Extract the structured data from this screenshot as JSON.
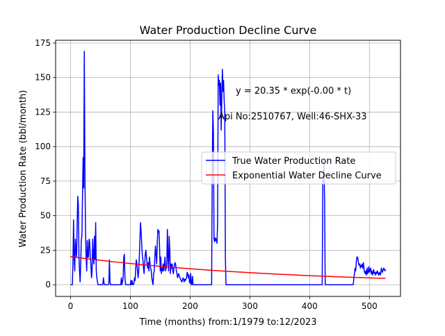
{
  "chart_data": {
    "type": "line",
    "title": "Water Production Decline Curve",
    "xlabel": "Time (months) from:1/1979 to:12/2023",
    "ylabel": "Water Production Rate (bbl/month)",
    "xlim": [
      -25,
      552
    ],
    "ylim": [
      -8.5,
      177
    ],
    "x_ticks": [
      0,
      100,
      200,
      300,
      400,
      500
    ],
    "y_ticks": [
      0,
      25,
      50,
      75,
      100,
      125,
      150,
      175
    ],
    "grid": true,
    "legend_position": "center-right",
    "annotations": [
      {
        "text": "y = 20.35 * exp(-0.00 * t)",
        "x": 275,
        "y": 139
      },
      {
        "text": "Api No:2510767, Well:46-SHX-33",
        "x": 245,
        "y": 121
      }
    ],
    "series": [
      {
        "name": "True Water Production Rate",
        "color": "#0000ff",
        "points": [
          [
            0,
            0
          ],
          [
            3,
            0
          ],
          [
            4,
            16
          ],
          [
            5,
            47
          ],
          [
            6,
            20
          ],
          [
            7,
            10
          ],
          [
            8,
            33
          ],
          [
            9,
            25
          ],
          [
            10,
            20
          ],
          [
            11,
            43
          ],
          [
            12,
            64
          ],
          [
            13,
            58
          ],
          [
            14,
            20
          ],
          [
            15,
            10
          ],
          [
            16,
            2
          ],
          [
            17,
            15
          ],
          [
            18,
            33
          ],
          [
            19,
            35
          ],
          [
            20,
            65
          ],
          [
            21,
            92
          ],
          [
            22,
            70
          ],
          [
            23,
            169
          ],
          [
            24,
            80
          ],
          [
            25,
            40
          ],
          [
            26,
            20
          ],
          [
            27,
            10
          ],
          [
            28,
            32
          ],
          [
            29,
            20
          ],
          [
            30,
            20
          ],
          [
            31,
            33
          ],
          [
            32,
            31
          ],
          [
            33,
            20
          ],
          [
            34,
            15
          ],
          [
            35,
            5
          ],
          [
            36,
            10
          ],
          [
            37,
            33
          ],
          [
            38,
            20
          ],
          [
            39,
            15
          ],
          [
            40,
            35
          ],
          [
            41,
            18
          ],
          [
            42,
            45
          ],
          [
            43,
            10
          ],
          [
            44,
            5
          ],
          [
            45,
            2
          ],
          [
            46,
            0
          ],
          [
            47,
            0
          ],
          [
            48,
            0
          ],
          [
            49,
            0
          ],
          [
            50,
            0
          ],
          [
            51,
            0
          ],
          [
            52,
            0
          ],
          [
            54,
            0
          ],
          [
            55,
            5
          ],
          [
            56,
            1
          ],
          [
            57,
            0
          ],
          [
            60,
            0
          ],
          [
            64,
            0
          ],
          [
            65,
            18
          ],
          [
            66,
            2
          ],
          [
            67,
            0
          ],
          [
            70,
            0
          ],
          [
            75,
            0
          ],
          [
            80,
            0
          ],
          [
            84,
            0
          ],
          [
            85,
            5
          ],
          [
            86,
            0
          ],
          [
            88,
            5
          ],
          [
            89,
            20
          ],
          [
            90,
            22
          ],
          [
            91,
            5
          ],
          [
            92,
            0
          ],
          [
            95,
            0
          ],
          [
            100,
            0
          ],
          [
            101,
            3
          ],
          [
            102,
            0
          ],
          [
            103,
            3
          ],
          [
            104,
            0
          ],
          [
            105,
            0
          ],
          [
            106,
            1
          ],
          [
            107,
            5
          ],
          [
            108,
            3
          ],
          [
            109,
            12
          ],
          [
            110,
            18
          ],
          [
            111,
            15
          ],
          [
            112,
            10
          ],
          [
            113,
            5
          ],
          [
            114,
            10
          ],
          [
            115,
            20
          ],
          [
            116,
            32
          ],
          [
            117,
            45
          ],
          [
            118,
            38
          ],
          [
            119,
            30
          ],
          [
            120,
            22
          ],
          [
            121,
            18
          ],
          [
            122,
            12
          ],
          [
            123,
            8
          ],
          [
            124,
            15
          ],
          [
            125,
            22
          ],
          [
            126,
            25
          ],
          [
            127,
            20
          ],
          [
            128,
            15
          ],
          [
            129,
            12
          ],
          [
            130,
            16
          ],
          [
            131,
            10
          ],
          [
            132,
            20
          ],
          [
            133,
            15
          ],
          [
            134,
            12
          ],
          [
            135,
            10
          ],
          [
            136,
            5
          ],
          [
            137,
            2
          ],
          [
            138,
            0
          ],
          [
            139,
            8
          ],
          [
            140,
            10
          ],
          [
            141,
            20
          ],
          [
            142,
            28
          ],
          [
            143,
            22
          ],
          [
            144,
            15
          ],
          [
            145,
            30
          ],
          [
            146,
            40
          ],
          [
            147,
            38
          ],
          [
            148,
            39
          ],
          [
            149,
            25
          ],
          [
            150,
            10
          ],
          [
            151,
            20
          ],
          [
            152,
            8
          ],
          [
            153,
            12
          ],
          [
            154,
            10
          ],
          [
            155,
            15
          ],
          [
            156,
            10
          ],
          [
            157,
            15
          ],
          [
            158,
            20
          ],
          [
            159,
            10
          ],
          [
            160,
            12
          ],
          [
            161,
            15
          ],
          [
            162,
            40
          ],
          [
            163,
            20
          ],
          [
            164,
            10
          ],
          [
            165,
            35
          ],
          [
            166,
            25
          ],
          [
            167,
            8
          ],
          [
            168,
            15
          ],
          [
            169,
            12
          ],
          [
            170,
            15
          ],
          [
            171,
            10
          ],
          [
            172,
            8
          ],
          [
            173,
            12
          ],
          [
            174,
            15
          ],
          [
            175,
            16
          ],
          [
            176,
            14
          ],
          [
            177,
            10
          ],
          [
            178,
            8
          ],
          [
            179,
            5
          ],
          [
            180,
            7
          ],
          [
            181,
            8
          ],
          [
            182,
            6
          ],
          [
            183,
            5
          ],
          [
            184,
            4
          ],
          [
            185,
            3
          ],
          [
            186,
            2
          ],
          [
            187,
            3
          ],
          [
            188,
            5
          ],
          [
            189,
            4
          ],
          [
            190,
            2
          ],
          [
            191,
            4
          ],
          [
            192,
            3
          ],
          [
            193,
            4
          ],
          [
            194,
            5
          ],
          [
            195,
            9
          ],
          [
            196,
            8
          ],
          [
            197,
            5
          ],
          [
            198,
            7
          ],
          [
            199,
            2
          ],
          [
            200,
            1
          ],
          [
            201,
            8
          ],
          [
            202,
            0
          ],
          [
            203,
            0
          ],
          [
            204,
            6
          ],
          [
            205,
            0
          ],
          [
            206,
            0
          ],
          [
            210,
            0
          ],
          [
            215,
            0
          ],
          [
            220,
            0
          ],
          [
            225,
            0
          ],
          [
            230,
            0
          ],
          [
            235,
            0
          ],
          [
            236,
            0
          ],
          [
            237,
            80
          ],
          [
            238,
            126
          ],
          [
            239,
            110
          ],
          [
            240,
            33
          ],
          [
            241,
            31
          ],
          [
            242,
            34
          ],
          [
            243,
            32
          ],
          [
            244,
            33
          ],
          [
            245,
            30
          ],
          [
            246,
            45
          ],
          [
            247,
            152
          ],
          [
            248,
            144
          ],
          [
            249,
            148
          ],
          [
            250,
            130
          ],
          [
            251,
            146
          ],
          [
            252,
            112
          ],
          [
            253,
            135
          ],
          [
            254,
            156
          ],
          [
            255,
            140
          ],
          [
            256,
            148
          ],
          [
            257,
            133
          ],
          [
            258,
            125
          ],
          [
            259,
            20
          ],
          [
            260,
            0
          ],
          [
            262,
            0
          ],
          [
            270,
            0
          ],
          [
            280,
            0
          ],
          [
            290,
            0
          ],
          [
            300,
            0
          ],
          [
            320,
            0
          ],
          [
            340,
            0
          ],
          [
            360,
            0
          ],
          [
            380,
            0
          ],
          [
            400,
            0
          ],
          [
            410,
            0
          ],
          [
            420,
            0
          ],
          [
            421,
            0
          ],
          [
            422,
            72
          ],
          [
            423,
            80
          ],
          [
            424,
            88
          ],
          [
            425,
            60
          ],
          [
            426,
            0
          ],
          [
            430,
            0
          ],
          [
            440,
            0
          ],
          [
            450,
            0
          ],
          [
            460,
            0
          ],
          [
            470,
            0
          ],
          [
            473,
            0
          ],
          [
            474,
            5
          ],
          [
            475,
            8
          ],
          [
            476,
            12
          ],
          [
            477,
            10
          ],
          [
            478,
            16
          ],
          [
            479,
            20
          ],
          [
            480,
            20
          ],
          [
            481,
            18
          ],
          [
            482,
            15
          ],
          [
            483,
            14
          ],
          [
            484,
            15
          ],
          [
            485,
            12
          ],
          [
            486,
            14
          ],
          [
            487,
            13
          ],
          [
            488,
            15
          ],
          [
            489,
            12
          ],
          [
            490,
            16
          ],
          [
            491,
            11
          ],
          [
            492,
            9
          ],
          [
            493,
            8
          ],
          [
            494,
            10
          ],
          [
            495,
            7
          ],
          [
            496,
            12
          ],
          [
            497,
            8
          ],
          [
            498,
            9
          ],
          [
            499,
            13
          ],
          [
            500,
            9
          ],
          [
            501,
            11
          ],
          [
            502,
            12
          ],
          [
            503,
            8
          ],
          [
            504,
            10
          ],
          [
            505,
            7
          ],
          [
            506,
            9
          ],
          [
            507,
            11
          ],
          [
            508,
            8
          ],
          [
            509,
            9
          ],
          [
            510,
            7
          ],
          [
            511,
            9
          ],
          [
            512,
            8
          ],
          [
            513,
            10
          ],
          [
            514,
            9
          ],
          [
            515,
            7
          ],
          [
            516,
            8
          ],
          [
            517,
            9
          ],
          [
            518,
            7
          ],
          [
            519,
            8
          ],
          [
            520,
            12
          ],
          [
            521,
            10
          ],
          [
            522,
            9
          ],
          [
            523,
            11
          ],
          [
            524,
            12
          ],
          [
            525,
            11
          ],
          [
            526,
            10
          ],
          [
            527,
            11
          ]
        ]
      },
      {
        "name": "Exponential Water Decline Curve",
        "color": "#ff0000",
        "fit": {
          "a": 20.35,
          "b": 0.00283,
          "x_start": 0,
          "x_end": 527
        }
      }
    ]
  }
}
